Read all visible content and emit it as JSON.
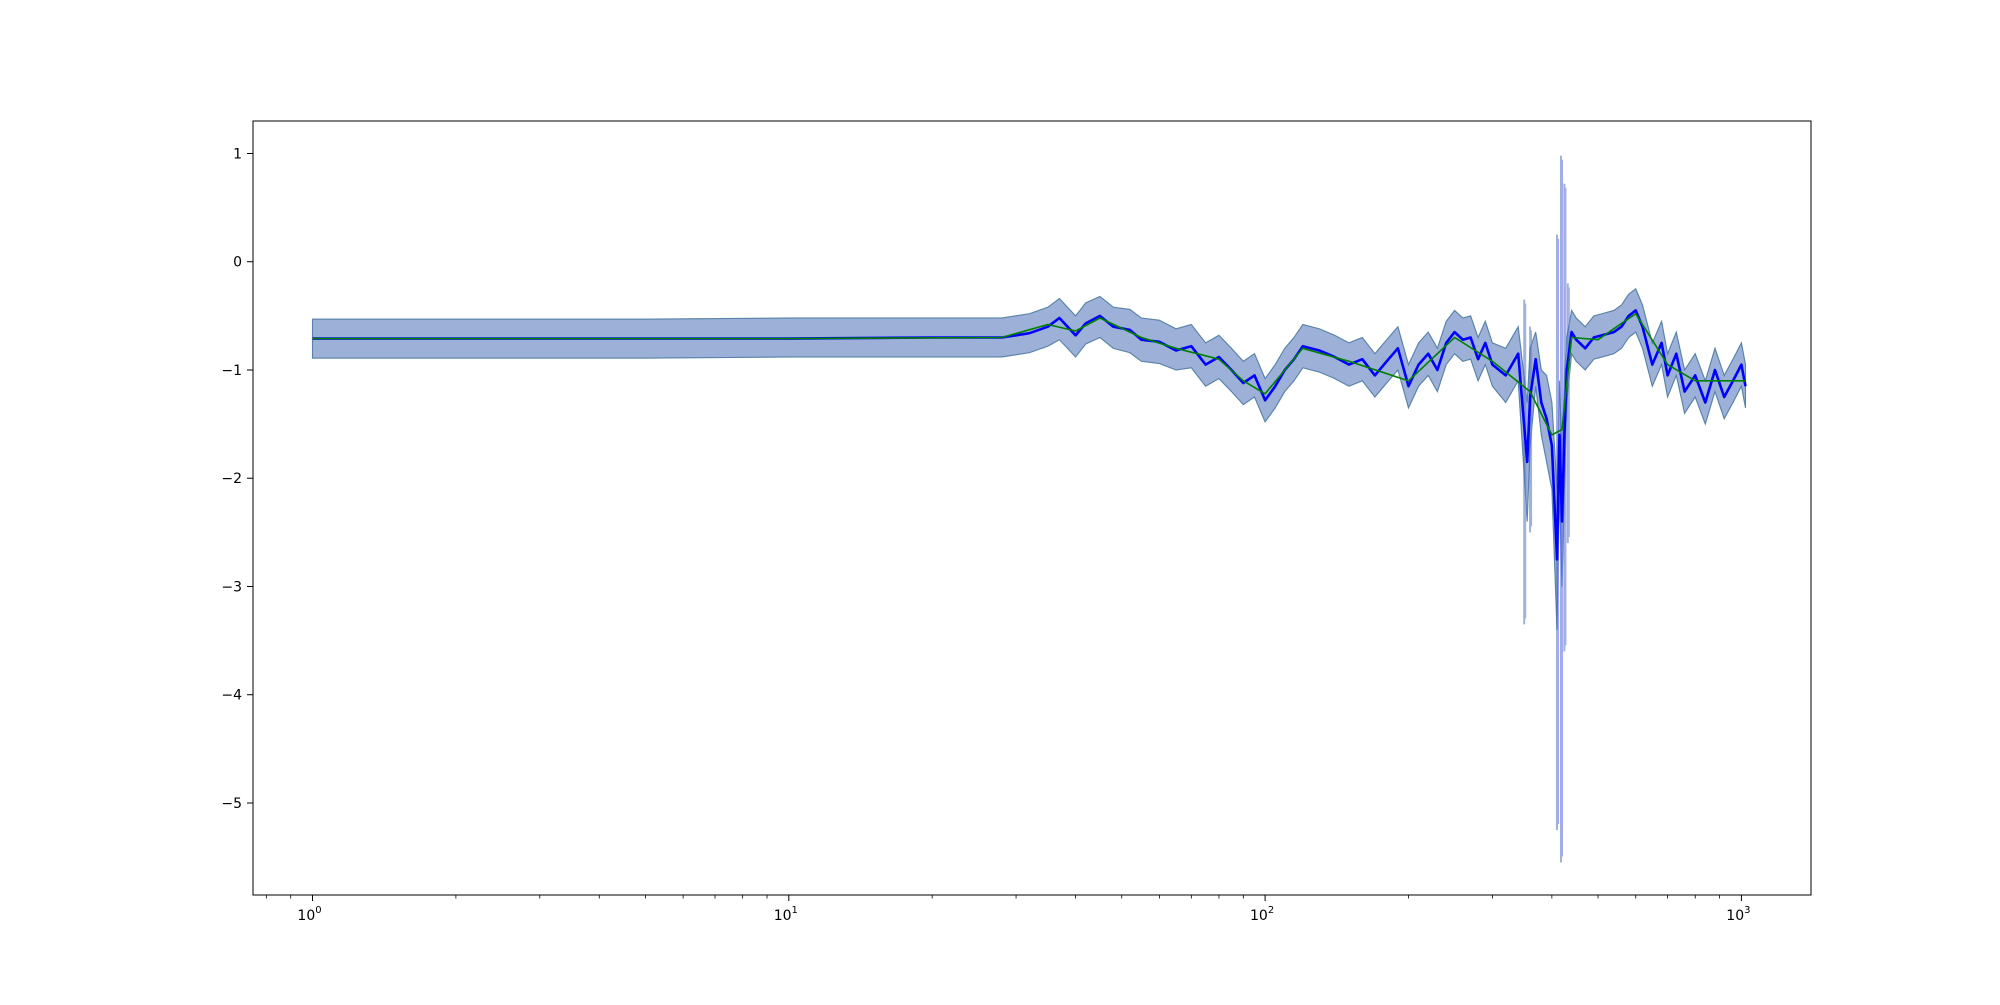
{
  "chart_data": {
    "type": "line",
    "title": "",
    "xlabel": "",
    "ylabel": "",
    "xscale": "log",
    "xlim": [
      0.75,
      1400
    ],
    "ylim": [
      -5.85,
      1.3
    ],
    "grid": false,
    "legend": "none",
    "x_ticks": [
      {
        "value": 1,
        "base": "10",
        "exp": "0"
      },
      {
        "value": 10,
        "base": "10",
        "exp": "1"
      },
      {
        "value": 100,
        "base": "10",
        "exp": "2"
      },
      {
        "value": 1000,
        "base": "10",
        "exp": "3"
      }
    ],
    "y_ticks": [
      {
        "value": 1,
        "label": "1"
      },
      {
        "value": 0,
        "label": "0"
      },
      {
        "value": -1,
        "label": "−1"
      },
      {
        "value": -2,
        "label": "−2"
      },
      {
        "value": -3,
        "label": "−3"
      },
      {
        "value": -4,
        "label": "−4"
      },
      {
        "value": -5,
        "label": "−5"
      }
    ],
    "colors": {
      "mean_line_primary": "#0000ff",
      "mean_line_secondary": "#008000",
      "band_primary": "#4c72b0",
      "band_secondary": "#9fd09f",
      "band_tertiary": "#7b7bff"
    },
    "series": [
      {
        "role": "mean-blue",
        "x": [
          1,
          5,
          10,
          20,
          28,
          32,
          35,
          37,
          40,
          42,
          45,
          48,
          52,
          55,
          60,
          65,
          70,
          75,
          80,
          85,
          90,
          95,
          100,
          105,
          110,
          115,
          120,
          130,
          140,
          150,
          160,
          170,
          180,
          190,
          200,
          210,
          220,
          230,
          240,
          250,
          260,
          270,
          280,
          290,
          300,
          320,
          340,
          355,
          360,
          370,
          380,
          390,
          400,
          410,
          415,
          420,
          425,
          430,
          440,
          450,
          470,
          490,
          510,
          540,
          560,
          580,
          600,
          620,
          650,
          680,
          700,
          730,
          760,
          800,
          840,
          880,
          920,
          960,
          1000,
          1020
        ],
        "y": [
          -0.71,
          -0.71,
          -0.71,
          -0.7,
          -0.7,
          -0.66,
          -0.6,
          -0.52,
          -0.68,
          -0.57,
          -0.5,
          -0.6,
          -0.63,
          -0.72,
          -0.74,
          -0.82,
          -0.78,
          -0.95,
          -0.88,
          -1.0,
          -1.12,
          -1.05,
          -1.28,
          -1.15,
          -1.0,
          -0.9,
          -0.78,
          -0.82,
          -0.88,
          -0.95,
          -0.9,
          -1.05,
          -0.92,
          -0.8,
          -1.15,
          -0.95,
          -0.85,
          -1.0,
          -0.75,
          -0.65,
          -0.72,
          -0.7,
          -0.9,
          -0.75,
          -0.95,
          -1.05,
          -0.85,
          -1.85,
          -1.25,
          -0.9,
          -1.3,
          -1.45,
          -1.7,
          -2.75,
          -1.6,
          -2.4,
          -1.6,
          -1.0,
          -0.65,
          -0.72,
          -0.8,
          -0.7,
          -0.68,
          -0.65,
          -0.6,
          -0.5,
          -0.45,
          -0.6,
          -0.95,
          -0.75,
          -1.05,
          -0.85,
          -1.2,
          -1.05,
          -1.3,
          -1.0,
          -1.25,
          -1.1,
          -0.95,
          -1.15
        ]
      },
      {
        "role": "mean-green",
        "x": [
          1,
          10,
          28,
          35,
          40,
          45,
          55,
          65,
          80,
          90,
          100,
          120,
          150,
          200,
          250,
          300,
          360,
          400,
          420,
          440,
          500,
          600,
          700,
          800,
          1020
        ],
        "y": [
          -0.71,
          -0.71,
          -0.7,
          -0.58,
          -0.64,
          -0.52,
          -0.7,
          -0.8,
          -0.9,
          -1.1,
          -1.22,
          -0.8,
          -0.92,
          -1.1,
          -0.7,
          -0.92,
          -1.2,
          -1.6,
          -1.55,
          -0.7,
          -0.72,
          -0.48,
          -0.95,
          -1.1,
          -1.1
        ]
      }
    ],
    "bands": [
      {
        "role": "band-primary",
        "x": [
          1,
          5,
          10,
          20,
          28,
          32,
          35,
          37,
          40,
          42,
          45,
          48,
          52,
          55,
          60,
          65,
          70,
          75,
          80,
          85,
          90,
          95,
          100,
          105,
          110,
          115,
          120,
          130,
          140,
          150,
          160,
          170,
          180,
          190,
          200,
          210,
          220,
          230,
          240,
          250,
          260,
          270,
          280,
          290,
          300,
          320,
          340,
          355,
          360,
          370,
          380,
          390,
          400,
          410,
          415,
          420,
          425,
          430,
          440,
          450,
          470,
          490,
          510,
          540,
          560,
          580,
          600,
          620,
          650,
          680,
          700,
          730,
          760,
          800,
          840,
          880,
          920,
          960,
          1000,
          1020
        ],
        "lower": [
          -0.89,
          -0.89,
          -0.88,
          -0.88,
          -0.88,
          -0.84,
          -0.78,
          -0.72,
          -0.88,
          -0.76,
          -0.7,
          -0.8,
          -0.84,
          -0.92,
          -0.94,
          -1.0,
          -0.98,
          -1.15,
          -1.08,
          -1.2,
          -1.32,
          -1.25,
          -1.48,
          -1.35,
          -1.2,
          -1.1,
          -0.98,
          -1.02,
          -1.08,
          -1.15,
          -1.1,
          -1.25,
          -1.12,
          -1.0,
          -1.35,
          -1.15,
          -1.05,
          -1.2,
          -0.95,
          -0.85,
          -0.92,
          -0.9,
          -1.1,
          -0.95,
          -1.15,
          -1.3,
          -1.1,
          -2.4,
          -1.7,
          -1.15,
          -1.6,
          -1.85,
          -2.1,
          -3.4,
          -2.1,
          -3.0,
          -2.1,
          -1.3,
          -0.85,
          -0.92,
          -1.0,
          -0.9,
          -0.88,
          -0.85,
          -0.8,
          -0.7,
          -0.65,
          -0.8,
          -1.15,
          -0.95,
          -1.25,
          -1.05,
          -1.4,
          -1.25,
          -1.5,
          -1.2,
          -1.45,
          -1.3,
          -1.15,
          -1.35
        ],
        "upper": [
          -0.53,
          -0.53,
          -0.52,
          -0.52,
          -0.52,
          -0.48,
          -0.42,
          -0.34,
          -0.5,
          -0.38,
          -0.32,
          -0.42,
          -0.44,
          -0.52,
          -0.54,
          -0.62,
          -0.58,
          -0.75,
          -0.68,
          -0.8,
          -0.92,
          -0.85,
          -1.08,
          -0.95,
          -0.8,
          -0.7,
          -0.58,
          -0.62,
          -0.68,
          -0.75,
          -0.7,
          -0.85,
          -0.72,
          -0.6,
          -0.95,
          -0.75,
          -0.65,
          -0.8,
          -0.55,
          -0.45,
          -0.52,
          -0.5,
          -0.7,
          -0.55,
          -0.75,
          -0.8,
          -0.6,
          -1.3,
          -0.8,
          -0.65,
          -1.0,
          -1.05,
          -1.3,
          -2.1,
          -1.1,
          -1.8,
          -1.1,
          -0.7,
          -0.45,
          -0.52,
          -0.6,
          -0.5,
          -0.48,
          -0.45,
          -0.4,
          -0.3,
          -0.25,
          -0.4,
          -0.75,
          -0.55,
          -0.85,
          -0.65,
          -1.0,
          -0.85,
          -1.1,
          -0.8,
          -1.05,
          -0.9,
          -0.75,
          -0.95
        ]
      }
    ],
    "spikes": [
      {
        "x": 350,
        "low": -3.35,
        "high": -0.35
      },
      {
        "x": 360,
        "low": -2.5,
        "high": -0.6
      },
      {
        "x": 410,
        "low": -5.25,
        "high": 0.25
      },
      {
        "x": 418,
        "low": -5.55,
        "high": 0.98
      },
      {
        "x": 425,
        "low": -3.6,
        "high": 0.72
      },
      {
        "x": 432,
        "low": -2.6,
        "high": -0.2
      }
    ]
  }
}
